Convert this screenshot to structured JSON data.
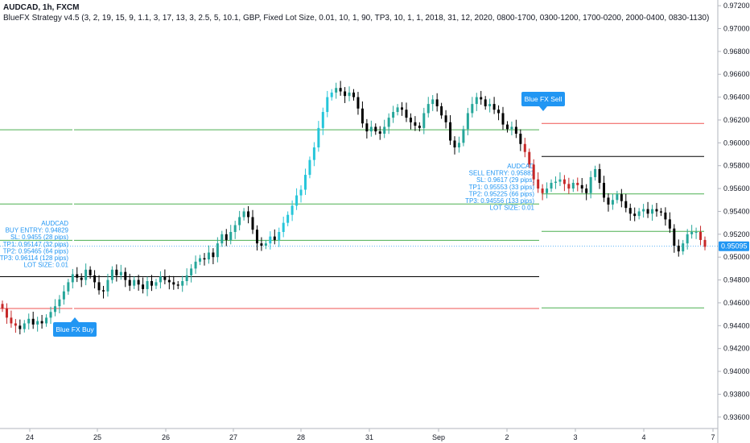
{
  "header": {
    "symbol_line": "AUDCAD, 1h, FXCM",
    "strategy_line": "BlueFX Strategy v4.5 (3, 2, 19, 15, 9, 1.1, 3, 17, 13, 3, 2.5, 5, 10.1, GBP, Fixed Lot Size, 0.01, 10, 1, 90, TP3, 10, 1, 1, 2018, 31, 12, 2020, 0800-1700, 0300-1200, 1700-0200, 2000-0400, 0830-1130)"
  },
  "colors": {
    "up": "#26a69a",
    "down": "#000000",
    "bull_run": "#26c6da",
    "bear": "#c62828",
    "label_blue": "#2196f3",
    "stop": "#ef5350",
    "target": "#4caf50",
    "entry": "#000000"
  },
  "price_axis": {
    "min": 0.935,
    "max": 0.9725,
    "ticks": [
      "0.93600",
      "0.93800",
      "0.94000",
      "0.94200",
      "0.94400",
      "0.94600",
      "0.94800",
      "0.95000",
      "0.95200",
      "0.95400",
      "0.95600",
      "0.95800",
      "0.96000",
      "0.96200",
      "0.96400",
      "0.96600",
      "0.96800",
      "0.97000",
      "0.97200"
    ],
    "current_price": "0.95095"
  },
  "time_axis": {
    "labels": [
      "24",
      "25",
      "26",
      "27",
      "28",
      "31",
      "Sep",
      "2",
      "3",
      "4",
      "7"
    ]
  },
  "chart_data": {
    "type": "candlestick",
    "symbol": "AUDCAD",
    "timeframe": "1h",
    "closes": [
      0.9455,
      0.9447,
      0.9442,
      0.944,
      0.9437,
      0.9442,
      0.9446,
      0.9441,
      0.9444,
      0.9442,
      0.9447,
      0.9452,
      0.9457,
      0.9463,
      0.947,
      0.9478,
      0.9485,
      0.9482,
      0.948,
      0.9489,
      0.9484,
      0.9478,
      0.9471,
      0.947,
      0.948,
      0.9489,
      0.9484,
      0.9487,
      0.948,
      0.9475,
      0.948,
      0.9476,
      0.9472,
      0.9479,
      0.9475,
      0.9478,
      0.9483,
      0.948,
      0.9478,
      0.9476,
      0.9475,
      0.9479,
      0.9484,
      0.949,
      0.9496,
      0.9499,
      0.9498,
      0.9504,
      0.95,
      0.9512,
      0.952,
      0.9515,
      0.9522,
      0.9528,
      0.9535,
      0.954,
      0.9535,
      0.9524,
      0.9512,
      0.951,
      0.9512,
      0.9518,
      0.9515,
      0.9522,
      0.953,
      0.9537,
      0.9545,
      0.9554,
      0.9559,
      0.9572,
      0.9585,
      0.9596,
      0.9613,
      0.9627,
      0.964,
      0.9644,
      0.9648,
      0.9645,
      0.9641,
      0.9644,
      0.964,
      0.963,
      0.9617,
      0.961,
      0.9614,
      0.961,
      0.9608,
      0.9614,
      0.9622,
      0.9627,
      0.9631,
      0.9629,
      0.9622,
      0.9618,
      0.9615,
      0.9613,
      0.9626,
      0.9634,
      0.9638,
      0.9632,
      0.9624,
      0.9618,
      0.9602,
      0.9596,
      0.96,
      0.9612,
      0.9626,
      0.9634,
      0.964,
      0.9638,
      0.9632,
      0.9634,
      0.9629,
      0.9626,
      0.9616,
      0.9612,
      0.9614,
      0.9608,
      0.9599,
      0.9592,
      0.9581,
      0.9568,
      0.956,
      0.9556,
      0.956,
      0.9565,
      0.9566,
      0.9568,
      0.9564,
      0.956,
      0.9565,
      0.9563,
      0.956,
      0.9556,
      0.957,
      0.9577,
      0.9565,
      0.9552,
      0.9546,
      0.955,
      0.9555,
      0.9549,
      0.9543,
      0.9538,
      0.9536,
      0.954,
      0.9542,
      0.9538,
      0.9542,
      0.954,
      0.9539,
      0.9533,
      0.9525,
      0.951,
      0.9505,
      0.9512,
      0.952,
      0.9522,
      0.9522,
      0.9515,
      0.9509
    ]
  },
  "trades": [
    {
      "signal_label": "Blue FX Buy",
      "info_lines": [
        "AUDCAD",
        "BUY ENTRY: 0.94829",
        "SL: 0.9455 (28 pips)",
        "TP1: 0.95147 (32 pips)",
        "TP2: 0.95465 (64 pips)",
        "TP3: 0.96114 (128 pips)",
        "LOT SIZE: 0.01"
      ],
      "entry": 0.94829,
      "stop": 0.9455,
      "targets": [
        0.95147,
        0.95465,
        0.96114
      ]
    },
    {
      "signal_label": "Blue FX Sell",
      "info_lines": [
        "AUDCAD",
        "SELL ENTRY: 0.95881",
        "SL: 0.9617 (29 pips)",
        "TP1: 0.95553 (33 pips)",
        "TP2: 0.95225 (66 pips)",
        "TP3: 0.94556 (133 pips)",
        "LOT SIZE: 0.01"
      ],
      "entry": 0.95881,
      "stop": 0.9617,
      "targets": [
        0.95553,
        0.95225,
        0.94556
      ]
    }
  ]
}
